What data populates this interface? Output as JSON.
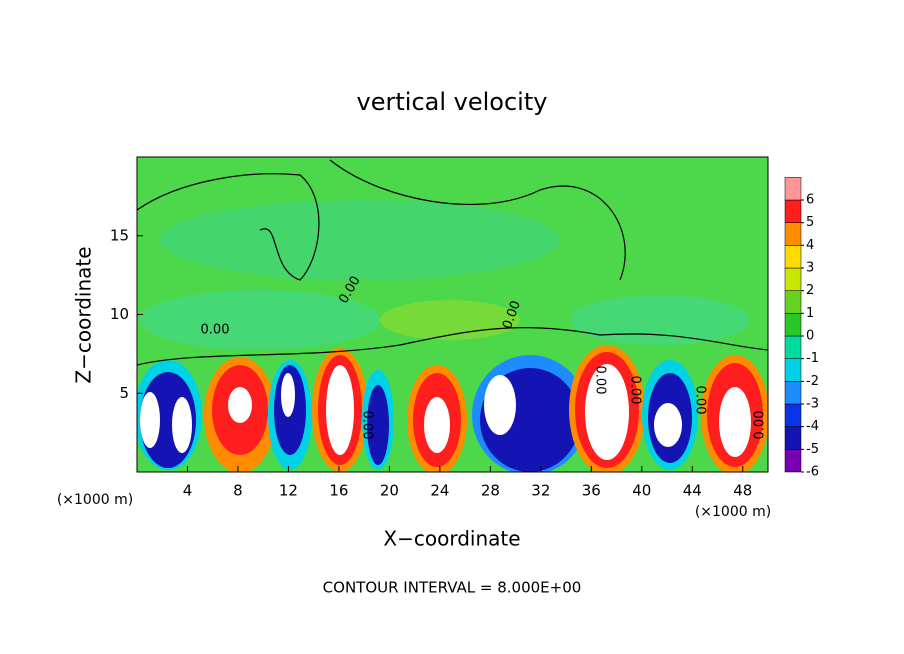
{
  "chart_data": {
    "type": "contour",
    "title": "vertical velocity",
    "xlabel": "X−coordinate",
    "ylabel": "Z−coordinate",
    "x_unit_labels": [
      "(×1000 m)",
      "(×1000 m)"
    ],
    "footer": "CONTOUR INTERVAL = 8.000E+00",
    "contour_labels": [
      "0.00",
      "0.00",
      "0.00",
      "0.00",
      "0.00",
      "0.00",
      "0.00",
      "0.00"
    ],
    "xlim": [
      0,
      50
    ],
    "xticks": [
      4,
      8,
      12,
      16,
      20,
      24,
      28,
      32,
      36,
      40,
      44,
      48
    ],
    "ylim": [
      0,
      20
    ],
    "yticks": [
      5,
      10,
      15
    ],
    "background_color": "#4cd84a",
    "colorbar": {
      "ticks": [
        -6,
        -5,
        -4,
        -3,
        -2,
        -1,
        0,
        1,
        2,
        3,
        4,
        5,
        6
      ],
      "colors": [
        "#7b00b4",
        "#1414b4",
        "#0a32e6",
        "#1e8cff",
        "#00d2e6",
        "#00dca0",
        "#28c828",
        "#64d21e",
        "#c8e600",
        "#ffdc00",
        "#ff8c00",
        "#ff1e1e",
        "#ff9696"
      ]
    }
  }
}
